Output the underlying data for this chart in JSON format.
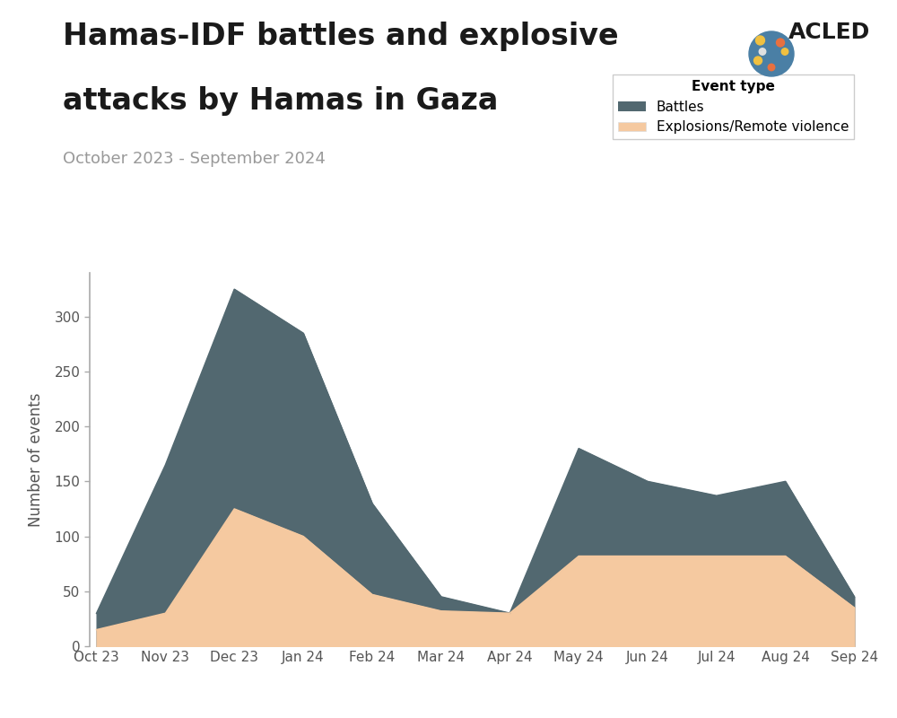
{
  "title_line1": "Hamas-IDF battles and explosive",
  "title_line2": "attacks by Hamas in Gaza",
  "subtitle": "October 2023 - September 2024",
  "ylabel": "Number of events",
  "months": [
    "Oct 23",
    "Nov 23",
    "Dec 23",
    "Jan 24",
    "Feb 24",
    "Mar 24",
    "Apr 24",
    "May 24",
    "Jun 24",
    "Jul 24",
    "Aug 24",
    "Sep 24"
  ],
  "battles": [
    30,
    165,
    325,
    285,
    130,
    45,
    30,
    180,
    150,
    137,
    150,
    45
  ],
  "explosions": [
    15,
    30,
    125,
    100,
    47,
    32,
    30,
    82,
    82,
    82,
    82,
    35
  ],
  "battles_color": "#526870",
  "explosions_color": "#F5C9A0",
  "ylim": [
    0,
    340
  ],
  "yticks": [
    0,
    50,
    100,
    150,
    200,
    250,
    300
  ],
  "legend_title": "Event type",
  "legend_battles": "Battles",
  "legend_explosions": "Explosions/Remote violence",
  "title_fontsize": 24,
  "subtitle_fontsize": 13,
  "ylabel_fontsize": 12,
  "tick_fontsize": 11,
  "background_color": "#ffffff",
  "title_color": "#1a1a1a",
  "subtitle_color": "#999999",
  "acled_text": "ACLED",
  "acled_fontsize": 18
}
